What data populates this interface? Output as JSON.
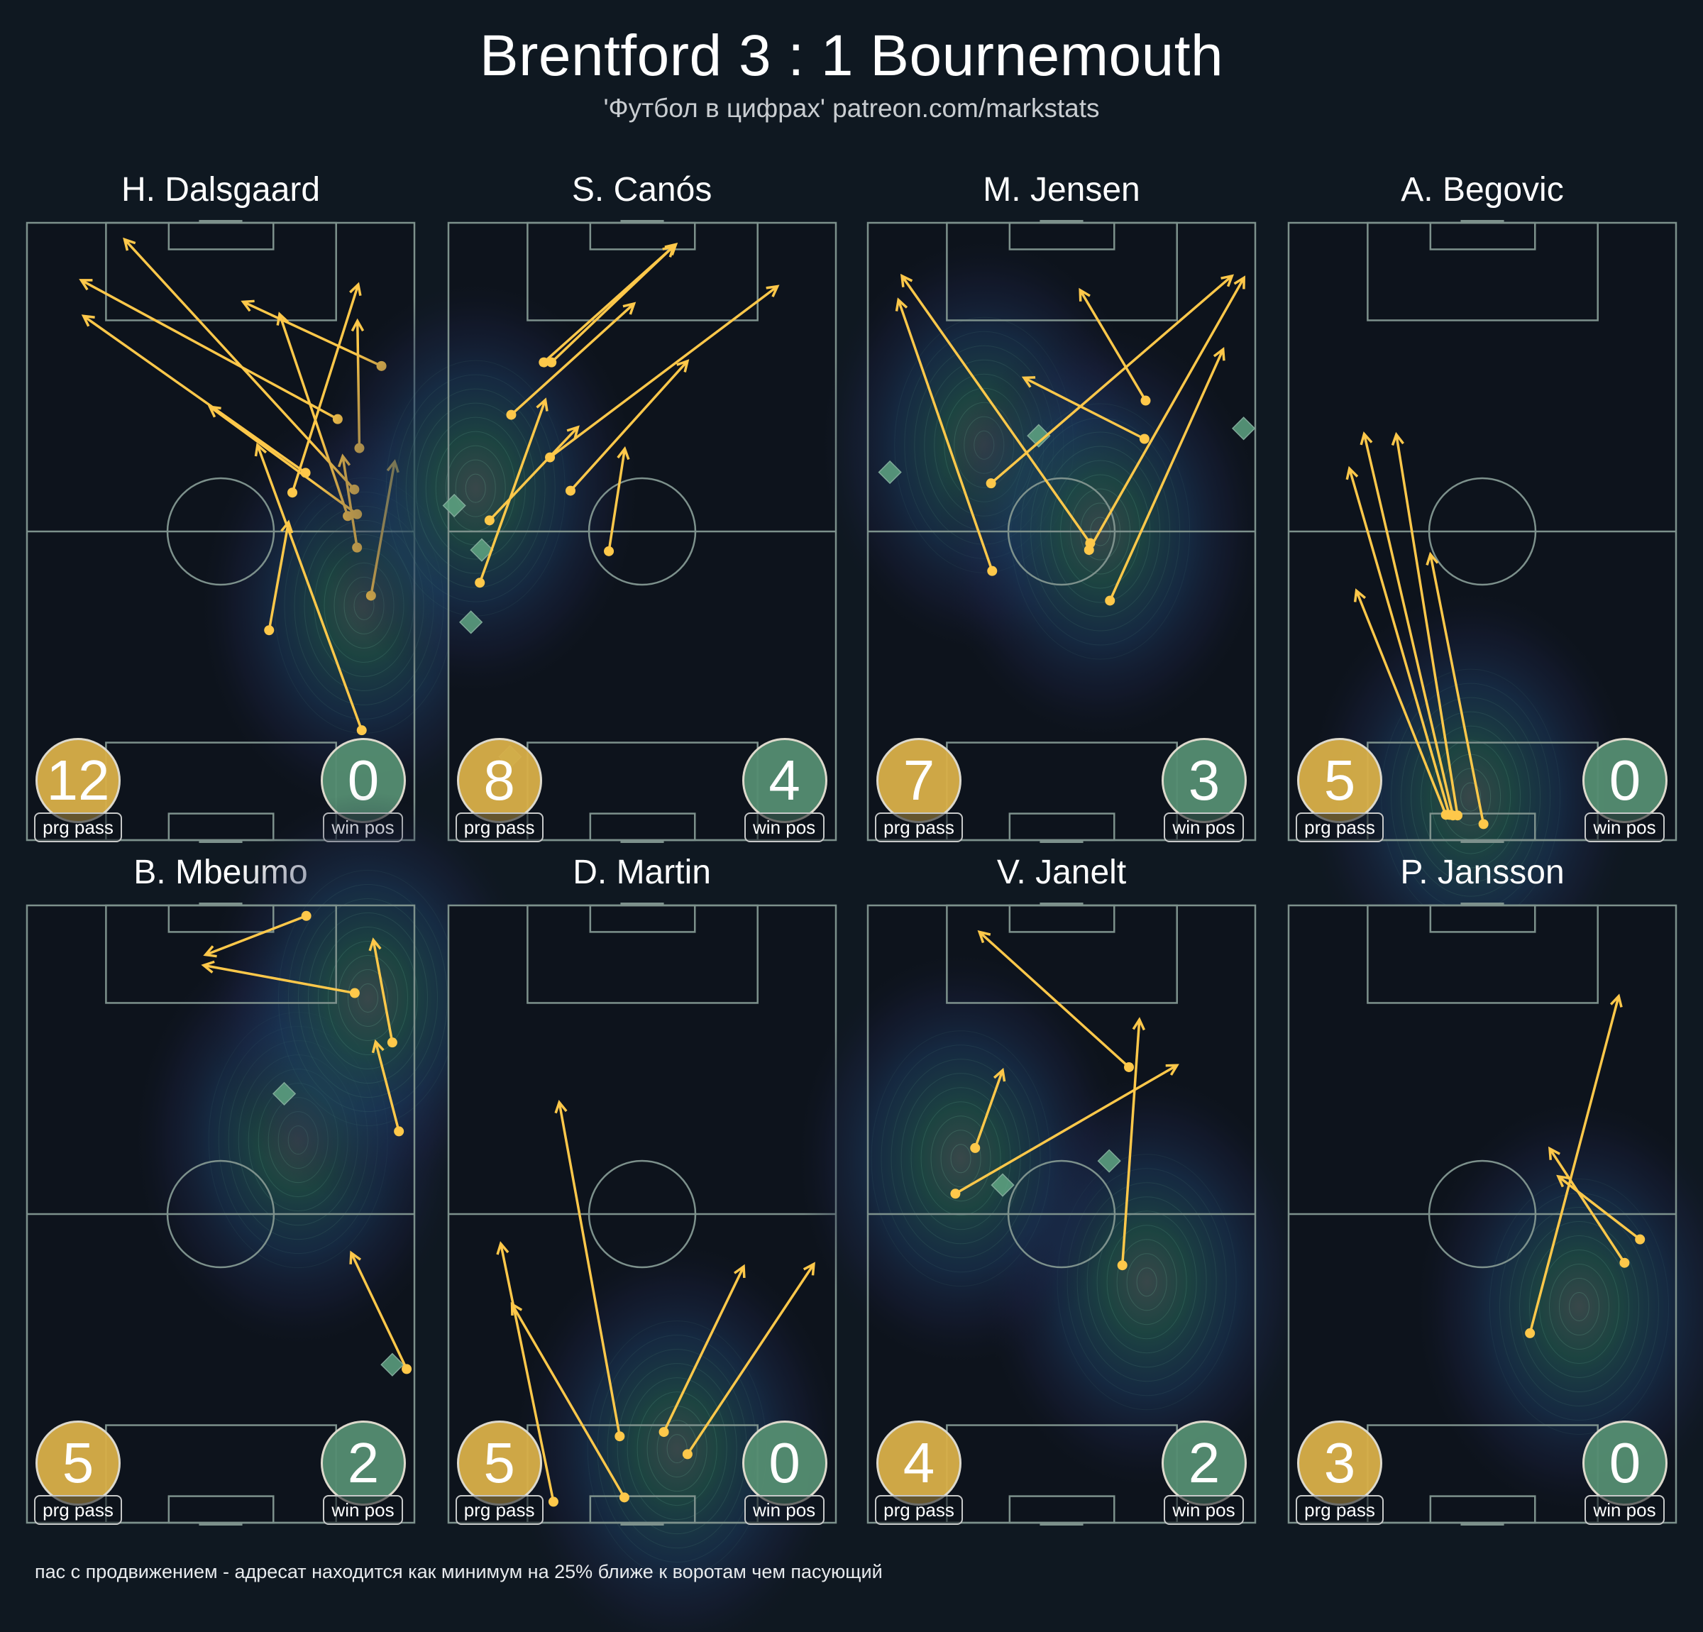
{
  "header": {
    "title": "Brentford 3 : 1 Bournemouth",
    "subtitle": "'Футбол в цифрах' patreon.com/markstats"
  },
  "footer": "пас с продвижением - адресат находится как минимум на 25% ближе к воротам чем пасующий",
  "labels": {
    "prg": "prg pass",
    "win": "win pos"
  },
  "colors": {
    "background": "#0f1821",
    "pitch": "#0d131c",
    "pitch_lines": "#7d918c",
    "pass_arrow": "#fec84a",
    "prg_badge": "#d6ae48",
    "win_badge": "#548c70",
    "win_marker": "#5fa582"
  },
  "chart_data": [
    {
      "type": "pass-map",
      "title": "H. Dalsgaard",
      "prg_pass": "12",
      "win_pos": "0",
      "xlim": [
        0,
        100
      ],
      "ylim": [
        0,
        100
      ],
      "passes": [
        {
          "from": [
            91.5,
            76.8
          ],
          "to": [
            55.8,
            87.2
          ]
        },
        {
          "from": [
            80.2,
            68.2
          ],
          "to": [
            14.0,
            90.7
          ]
        },
        {
          "from": [
            71.9,
            59.5
          ],
          "to": [
            14.6,
            84.9
          ]
        },
        {
          "from": [
            84.5,
            56.8
          ],
          "to": [
            25.2,
            97.3
          ]
        },
        {
          "from": [
            68.5,
            56.3
          ],
          "to": [
            85.5,
            90.0
          ]
        },
        {
          "from": [
            85.8,
            63.5
          ],
          "to": [
            85.3,
            84.1
          ]
        },
        {
          "from": [
            85.2,
            52.8
          ],
          "to": [
            47.2,
            70.2
          ]
        },
        {
          "from": [
            82.8,
            52.5
          ],
          "to": [
            65.2,
            85.2
          ]
        },
        {
          "from": [
            85.2,
            47.4
          ],
          "to": [
            81.5,
            62.2
          ]
        },
        {
          "from": [
            88.8,
            39.6
          ],
          "to": [
            94.9,
            61.3
          ]
        },
        {
          "from": [
            62.5,
            34.0
          ],
          "to": [
            67.5,
            51.5
          ]
        },
        {
          "from": [
            86.4,
            17.8
          ],
          "to": [
            59.5,
            64.0
          ]
        }
      ],
      "win_positions": [],
      "heat_peaks": [
        [
          87,
          38
        ]
      ]
    },
    {
      "type": "pass-map",
      "title": "S. Canós",
      "prg_pass": "8",
      "win_pos": "4",
      "xlim": [
        0,
        100
      ],
      "ylim": [
        0,
        100
      ],
      "passes": [
        {
          "from": [
            24.6,
            77.4
          ],
          "to": [
            58.7,
            96.5
          ]
        },
        {
          "from": [
            26.6,
            77.4
          ],
          "to": [
            58.1,
            96.2
          ]
        },
        {
          "from": [
            16.2,
            68.9
          ],
          "to": [
            47.9,
            86.9
          ]
        },
        {
          "from": [
            26.2,
            62.0
          ],
          "to": [
            84.9,
            89.7
          ]
        },
        {
          "from": [
            10.6,
            51.8
          ],
          "to": [
            33.4,
            66.9
          ]
        },
        {
          "from": [
            8.1,
            41.7
          ],
          "to": [
            25.0,
            71.3
          ]
        },
        {
          "from": [
            31.5,
            56.6
          ],
          "to": [
            61.7,
            77.6
          ]
        },
        {
          "from": [
            41.4,
            46.8
          ],
          "to": [
            45.5,
            63.4
          ]
        }
      ],
      "win_positions": [
        [
          1.5,
          54.2
        ],
        [
          8.6,
          47.0
        ],
        [
          5.8,
          35.3
        ],
        [
          15.9,
          13.5
        ]
      ],
      "heat_peaks": [
        [
          7,
          57
        ]
      ]
    },
    {
      "type": "pass-map",
      "title": "M. Jensen",
      "prg_pass": "7",
      "win_pos": "3",
      "xlim": [
        0,
        100
      ],
      "ylim": [
        0,
        100
      ],
      "passes": [
        {
          "from": [
            31.8,
            57.8
          ],
          "to": [
            94.0,
            91.4
          ]
        },
        {
          "from": [
            71.7,
            71.2
          ],
          "to": [
            54.8,
            89.1
          ]
        },
        {
          "from": [
            71.4,
            65.0
          ],
          "to": [
            40.3,
            74.9
          ]
        },
        {
          "from": [
            32.1,
            43.6
          ],
          "to": [
            7.9,
            87.5
          ]
        },
        {
          "from": [
            57.4,
            48.1
          ],
          "to": [
            8.8,
            91.4
          ]
        },
        {
          "from": [
            57.1,
            47.0
          ],
          "to": [
            97.1,
            91.1
          ]
        },
        {
          "from": [
            62.5,
            38.8
          ],
          "to": [
            91.7,
            79.5
          ]
        }
      ],
      "win_positions": [
        [
          5.7,
          59.6
        ],
        [
          44.1,
          65.5
        ],
        [
          97.0,
          66.7
        ]
      ],
      "heat_peaks": [
        [
          30,
          64
        ],
        [
          60,
          50
        ]
      ]
    },
    {
      "type": "pass-map",
      "title": "A. Begovic",
      "prg_pass": "5",
      "win_pos": "0",
      "xlim": [
        0,
        100
      ],
      "ylim": [
        0,
        100
      ],
      "passes": [
        {
          "from": [
            40.6,
            4.1
          ],
          "to": [
            17.5,
            40.4
          ]
        },
        {
          "from": [
            41.5,
            4.1
          ],
          "to": [
            15.7,
            60.2
          ]
        },
        {
          "from": [
            42.4,
            4.0
          ],
          "to": [
            19.5,
            65.8
          ]
        },
        {
          "from": [
            43.6,
            4.0
          ],
          "to": [
            27.8,
            65.7
          ]
        },
        {
          "from": [
            50.3,
            2.6
          ],
          "to": [
            36.6,
            46.3
          ]
        }
      ],
      "win_positions": [],
      "heat_peaks": [
        [
          47,
          7
        ]
      ]
    },
    {
      "type": "pass-map",
      "title": "B. Mbeumo",
      "prg_pass": "5",
      "win_pos": "2",
      "xlim": [
        0,
        100
      ],
      "ylim": [
        0,
        100
      ],
      "passes": [
        {
          "from": [
            72.1,
            98.3
          ],
          "to": [
            46.1,
            92.0
          ]
        },
        {
          "from": [
            84.6,
            85.8
          ],
          "to": [
            45.6,
            90.3
          ]
        },
        {
          "from": [
            94.3,
            77.8
          ],
          "to": [
            89.4,
            94.4
          ]
        },
        {
          "from": [
            96.0,
            63.4
          ],
          "to": [
            90.0,
            77.9
          ]
        },
        {
          "from": [
            98.0,
            24.9
          ],
          "to": [
            83.7,
            43.7
          ]
        }
      ],
      "win_positions": [
        [
          66.4,
          69.5
        ],
        [
          94.3,
          25.6
        ]
      ],
      "heat_peaks": [
        [
          70,
          62
        ],
        [
          88,
          85
        ]
      ]
    },
    {
      "type": "pass-map",
      "title": "D. Martin",
      "prg_pass": "5",
      "win_pos": "0",
      "xlim": [
        0,
        100
      ],
      "ylim": [
        0,
        100
      ],
      "passes": [
        {
          "from": [
            44.2,
            14.0
          ],
          "to": [
            28.6,
            68.1
          ]
        },
        {
          "from": [
            27.1,
            3.4
          ],
          "to": [
            13.5,
            45.2
          ]
        },
        {
          "from": [
            45.4,
            4.1
          ],
          "to": [
            16.4,
            35.4
          ]
        },
        {
          "from": [
            55.6,
            14.7
          ],
          "to": [
            76.2,
            41.5
          ]
        },
        {
          "from": [
            61.7,
            11.1
          ],
          "to": [
            94.3,
            41.9
          ]
        }
      ],
      "win_positions": [],
      "heat_peaks": [
        [
          59,
          12
        ]
      ]
    },
    {
      "type": "pass-map",
      "title": "V. Janelt",
      "prg_pass": "4",
      "win_pos": "2",
      "xlim": [
        0,
        100
      ],
      "ylim": [
        0,
        100
      ],
      "passes": [
        {
          "from": [
            67.4,
            73.8
          ],
          "to": [
            28.8,
            95.7
          ]
        },
        {
          "from": [
            65.7,
            41.7
          ],
          "to": [
            70.1,
            81.5
          ]
        },
        {
          "from": [
            27.7,
            60.7
          ],
          "to": [
            34.8,
            73.3
          ]
        },
        {
          "from": [
            22.6,
            53.3
          ],
          "to": [
            79.8,
            74.1
          ]
        }
      ],
      "win_positions": [
        [
          34.8,
          54.7
        ],
        [
          62.3,
          58.6
        ]
      ],
      "heat_peaks": [
        [
          72,
          39
        ],
        [
          24,
          59
        ]
      ]
    },
    {
      "type": "pass-map",
      "title": "P. Jansson",
      "prg_pass": "3",
      "win_pos": "0",
      "xlim": [
        0,
        100
      ],
      "ylim": [
        0,
        100
      ],
      "passes": [
        {
          "from": [
            62.3,
            30.7
          ],
          "to": [
            85.2,
            85.3
          ]
        },
        {
          "from": [
            86.7,
            42.1
          ],
          "to": [
            67.4,
            60.6
          ]
        },
        {
          "from": [
            90.7,
            45.9
          ],
          "to": [
            69.6,
            56.1
          ]
        }
      ],
      "win_positions": [],
      "heat_peaks": [
        [
          75,
          35
        ]
      ]
    }
  ]
}
